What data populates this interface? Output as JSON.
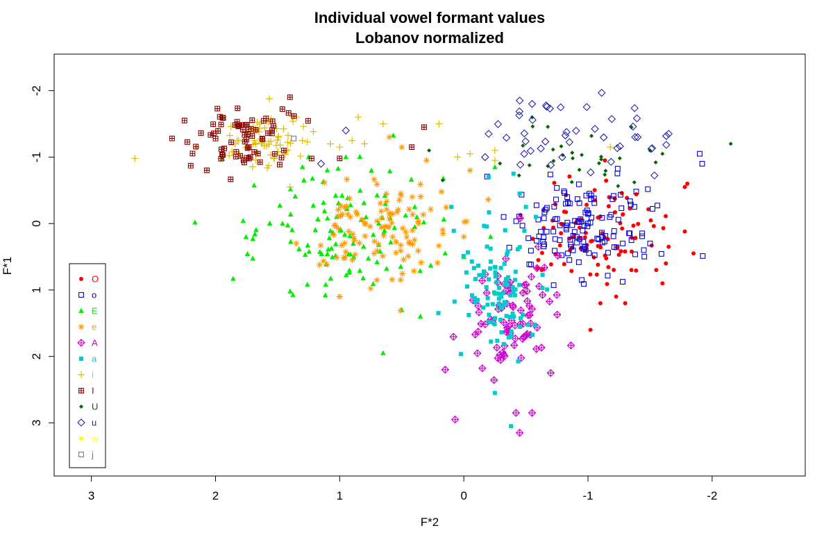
{
  "chart_data": {
    "type": "scatter",
    "title": "Individual vowel formant values",
    "subtitle": "Lobanov normalized",
    "xlabel": "F*2",
    "ylabel": "F*1",
    "x_reversed": true,
    "y_reversed": true,
    "xlim": [
      3.3,
      -2.75
    ],
    "ylim": [
      3.8,
      -2.55
    ],
    "x_ticks": [
      3,
      2,
      1,
      0,
      -1,
      -2
    ],
    "x_tick_labels": [
      "3",
      "2",
      "1",
      "0",
      "-1",
      "-2"
    ],
    "y_ticks": [
      -2,
      -1,
      0,
      1,
      2,
      3
    ],
    "y_tick_labels": [
      "-2",
      "-1",
      "0",
      "1",
      "2",
      "3"
    ],
    "grid": false,
    "legend_position": "bottom-left",
    "series": [
      {
        "name": "O",
        "color": "#ff0000",
        "marker": "dot",
        "clusters": [
          {
            "cx": -1.05,
            "cy": 0.1,
            "sx": 0.28,
            "sy": 0.4,
            "n": 90
          }
        ],
        "points": [
          [
            -1.8,
            -0.6
          ],
          [
            -1.78,
            -0.55
          ],
          [
            -1.65,
            0.35
          ],
          [
            -1.55,
            0.7
          ],
          [
            -1.85,
            0.45
          ],
          [
            -1.6,
            0.9
          ],
          [
            -1.3,
            1.2
          ],
          [
            -1.1,
            1.2
          ],
          [
            -1.02,
            1.6
          ],
          [
            -0.6,
            0.55
          ],
          [
            -1.78,
            0.12
          ],
          [
            -1.35,
            0.7
          ]
        ]
      },
      {
        "name": "o",
        "color": "#0000dd",
        "marker": "square",
        "clusters": [
          {
            "cx": -0.95,
            "cy": 0.05,
            "sx": 0.28,
            "sy": 0.38,
            "n": 130
          }
        ],
        "points": [
          [
            -1.9,
            -1.05
          ],
          [
            -1.92,
            -0.9
          ],
          [
            -1.5,
            0.3
          ],
          [
            -1.45,
            0.4
          ],
          [
            -1.35,
            0.25
          ],
          [
            -1.28,
            0.3
          ],
          [
            -0.95,
            0.85
          ],
          [
            -0.85,
            0.55
          ],
          [
            -0.52,
            0.22
          ]
        ]
      },
      {
        "name": "E",
        "color": "#00ee00",
        "marker": "triangle",
        "clusters": [
          {
            "cx": 1.0,
            "cy": 0.1,
            "sx": 0.42,
            "sy": 0.42,
            "n": 110
          }
        ],
        "points": [
          [
            1.3,
            -0.85
          ],
          [
            1.25,
            -1.0
          ],
          [
            1.1,
            -0.8
          ],
          [
            0.35,
            1.4
          ],
          [
            0.65,
            1.95
          ],
          [
            0.5,
            1.3
          ],
          [
            0.15,
            0.45
          ],
          [
            0.0,
            0.5
          ],
          [
            -0.25,
            -0.85
          ],
          [
            0.95,
            -1.0
          ]
        ]
      },
      {
        "name": "e",
        "color": "#ff9900",
        "marker": "asterisk",
        "clusters": [
          {
            "cx": 0.65,
            "cy": 0.0,
            "sx": 0.32,
            "sy": 0.4,
            "n": 110
          }
        ],
        "points": [
          [
            0.6,
            -1.3
          ],
          [
            0.5,
            -1.15
          ],
          [
            0.3,
            -0.95
          ],
          [
            -0.05,
            -0.8
          ],
          [
            1.0,
            1.1
          ],
          [
            0.7,
            0.85
          ],
          [
            1.35,
            0.3
          ],
          [
            0.0,
            0.2
          ]
        ]
      },
      {
        "name": "A",
        "color": "#cc00cc",
        "marker": "diamondplus",
        "clusters": [
          {
            "cx": -0.35,
            "cy": 1.45,
            "sx": 0.18,
            "sy": 0.38,
            "n": 85
          }
        ],
        "points": [
          [
            0.07,
            2.95
          ],
          [
            -0.42,
            2.85
          ],
          [
            -0.55,
            2.85
          ],
          [
            -0.45,
            3.15
          ],
          [
            -0.7,
            2.25
          ],
          [
            0.15,
            2.2
          ],
          [
            -0.6,
            0.35
          ]
        ]
      },
      {
        "name": "a",
        "color": "#00cccc",
        "marker": "filledsquare",
        "clusters": [
          {
            "cx": -0.3,
            "cy": 0.95,
            "sx": 0.16,
            "sy": 0.5,
            "n": 100
          }
        ],
        "points": [
          [
            -0.2,
            -0.7
          ],
          [
            -0.4,
            -0.75
          ],
          [
            -0.45,
            -0.45
          ],
          [
            -0.38,
            3.05
          ],
          [
            -0.25,
            2.55
          ],
          [
            0.1,
            -0.25
          ],
          [
            -0.5,
            -0.25
          ],
          [
            -0.58,
            -0.1
          ]
        ]
      },
      {
        "name": "i",
        "color": "#ddbb00",
        "marker": "plus",
        "clusters": [
          {
            "cx": 1.6,
            "cy": -1.25,
            "sx": 0.18,
            "sy": 0.22,
            "n": 70
          }
        ],
        "points": [
          [
            2.65,
            -0.98
          ],
          [
            2.15,
            -1.15
          ],
          [
            1.0,
            -1.15
          ],
          [
            0.9,
            -1.25
          ],
          [
            0.8,
            -1.2
          ],
          [
            0.65,
            -1.5
          ],
          [
            0.85,
            -1.6
          ],
          [
            0.2,
            -1.5
          ],
          [
            0.05,
            -1.0
          ],
          [
            -0.05,
            -1.05
          ],
          [
            -0.25,
            -1.1
          ],
          [
            -0.25,
            -0.95
          ],
          [
            -1.18,
            -1.15
          ],
          [
            1.4,
            -0.55
          ],
          [
            1.3,
            -1.25
          ]
        ]
      },
      {
        "name": "I",
        "color": "#880000",
        "marker": "squareplus",
        "clusters": [
          {
            "cx": 1.75,
            "cy": -1.25,
            "sx": 0.2,
            "sy": 0.25,
            "n": 70
          }
        ],
        "points": [
          [
            2.35,
            -1.28
          ],
          [
            2.25,
            -1.55
          ],
          [
            2.2,
            -0.87
          ],
          [
            1.0,
            -0.98
          ],
          [
            0.32,
            -1.45
          ],
          [
            0.42,
            -1.15
          ],
          [
            1.4,
            -1.9
          ],
          [
            1.45,
            -1.1
          ]
        ]
      },
      {
        "name": "U",
        "color": "#006600",
        "marker": "smalldiamond",
        "clusters": [
          {
            "cx": -1.0,
            "cy": -1.0,
            "sx": 0.3,
            "sy": 0.25,
            "n": 26
          }
        ],
        "points": [
          [
            -2.15,
            -1.2
          ],
          [
            -0.55,
            -1.6
          ],
          [
            -1.35,
            -1.45
          ],
          [
            -1.5,
            -1.1
          ],
          [
            0.17,
            -0.65
          ],
          [
            0.28,
            -1.1
          ],
          [
            -1.6,
            -1.05
          ]
        ]
      },
      {
        "name": "u",
        "color": "#2222aa",
        "marker": "diamond",
        "clusters": [
          {
            "cx": -0.95,
            "cy": -1.3,
            "sx": 0.35,
            "sy": 0.3,
            "n": 40
          }
        ],
        "points": [
          [
            0.95,
            -1.4
          ],
          [
            1.15,
            -0.9
          ],
          [
            -1.65,
            -1.35
          ],
          [
            -1.4,
            -1.3
          ],
          [
            -0.78,
            -1.75
          ],
          [
            -0.55,
            -1.8
          ],
          [
            -0.45,
            -1.85
          ],
          [
            -0.2,
            -1.35
          ]
        ]
      },
      {
        "name": "w",
        "color": "#ffff00",
        "marker": "dot",
        "clusters": [],
        "points": []
      },
      {
        "name": "j",
        "color": "#777777",
        "marker": "square",
        "clusters": [],
        "points": [
          [
            1.37,
            -1.28
          ]
        ]
      }
    ]
  }
}
